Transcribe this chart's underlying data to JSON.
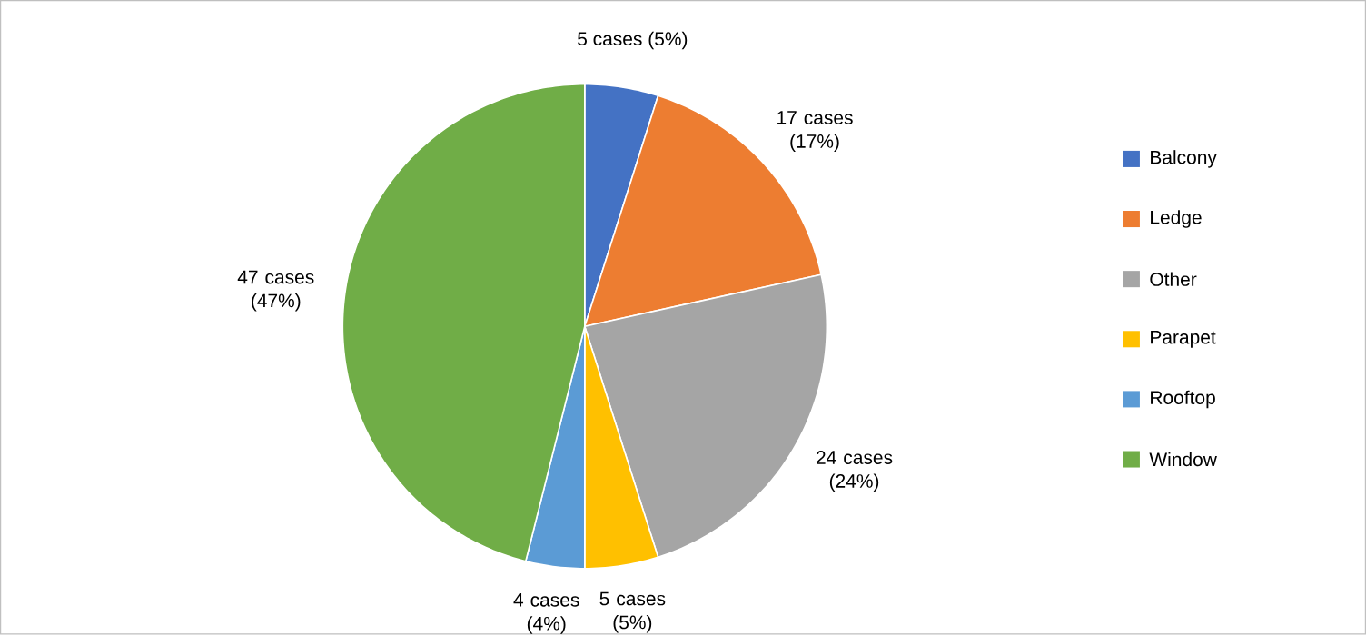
{
  "chart_data": {
    "type": "pie",
    "categories": [
      "Balcony",
      "Ledge",
      "Other",
      "Parapet",
      "Rooftop",
      "Window"
    ],
    "values": [
      5,
      17,
      24,
      5,
      4,
      47
    ],
    "colors": [
      "#4472c4",
      "#ed7d31",
      "#a5a5a5",
      "#ffc000",
      "#5b9bd5",
      "#70ad47"
    ],
    "value_labels": [
      "5 cases (5%)",
      "17 cases (17%)",
      "24 cases (24%)",
      "5 cases (5%)",
      "4 cases (4%)",
      "47 cases (47%)"
    ],
    "legend": "right"
  }
}
